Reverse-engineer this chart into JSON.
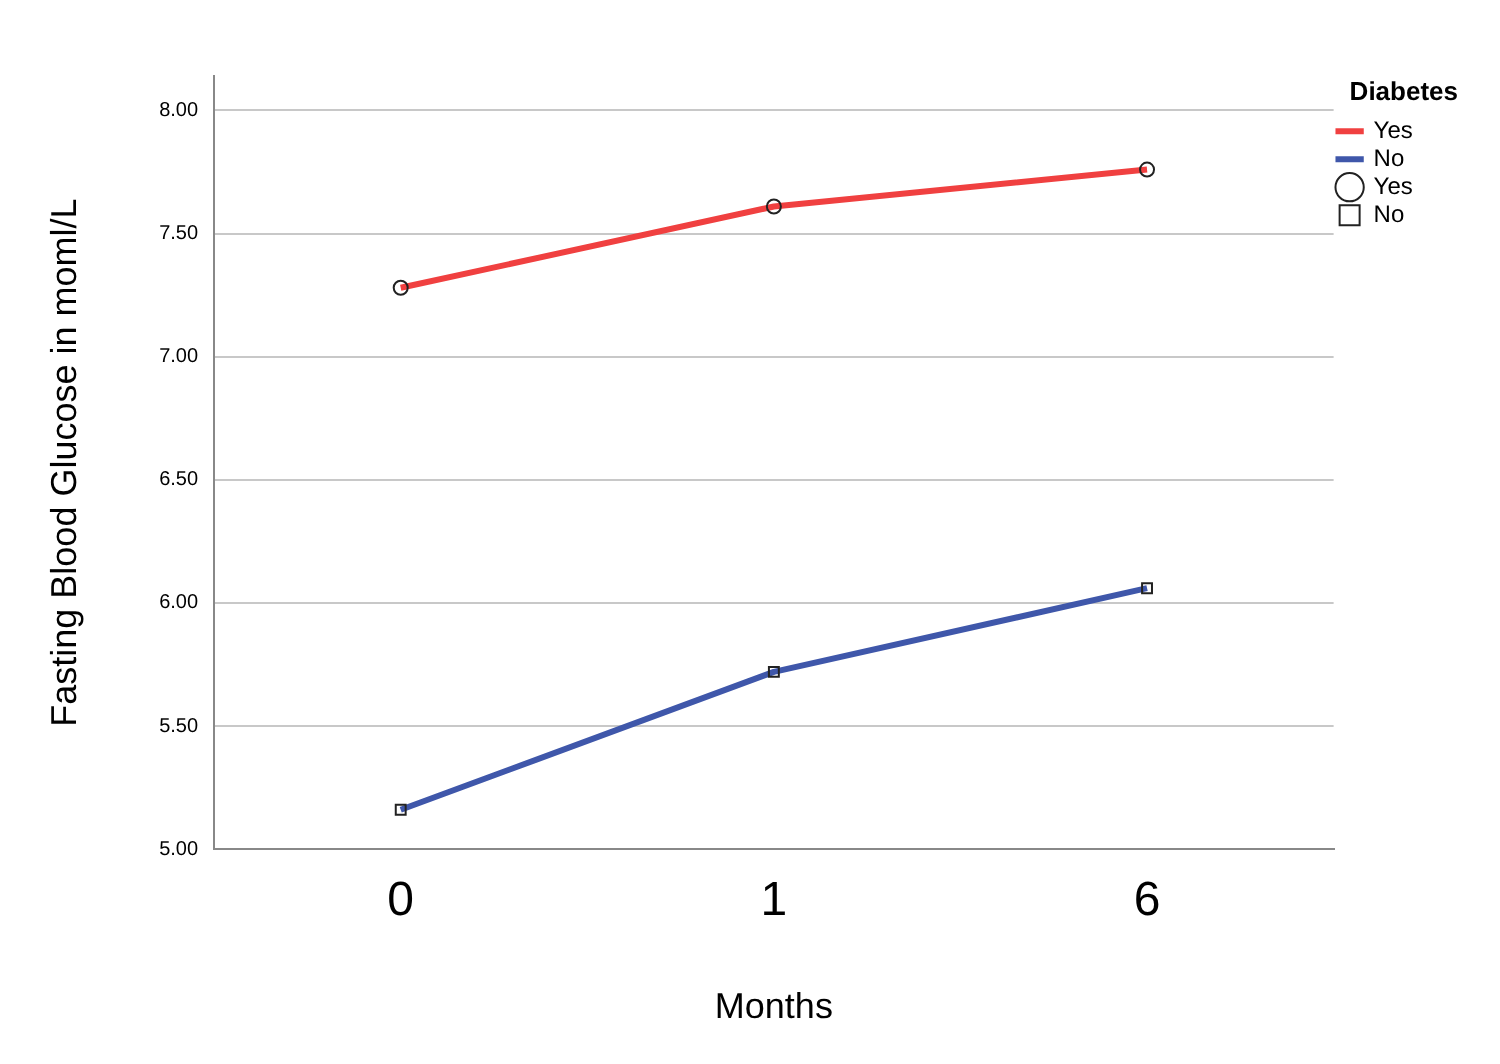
{
  "chart_data": {
    "type": "line",
    "xlabel": "Months",
    "ylabel": "Fasting Blood Glucose in moml/L",
    "legend_title": "Diabetes",
    "categories": [
      "0",
      "1",
      "6"
    ],
    "series": [
      {
        "name": "Yes",
        "color": "#f04040",
        "marker": "circle",
        "values": [
          7.28,
          7.61,
          7.76
        ]
      },
      {
        "name": "No",
        "color": "#3f57aa",
        "marker": "square",
        "values": [
          5.16,
          5.72,
          6.06
        ]
      }
    ],
    "ylim": [
      5,
      8.14
    ],
    "yticks": [
      {
        "value": 5,
        "label": "5.00"
      },
      {
        "value": 5.5,
        "label": "5.50"
      },
      {
        "value": 6,
        "label": "6.00"
      },
      {
        "value": 6.5,
        "label": "6.50"
      },
      {
        "value": 7,
        "label": "7.00"
      },
      {
        "value": 7.5,
        "label": "7.50"
      },
      {
        "value": 8,
        "label": "8.00"
      }
    ],
    "grid": "y",
    "legend": "top right"
  }
}
